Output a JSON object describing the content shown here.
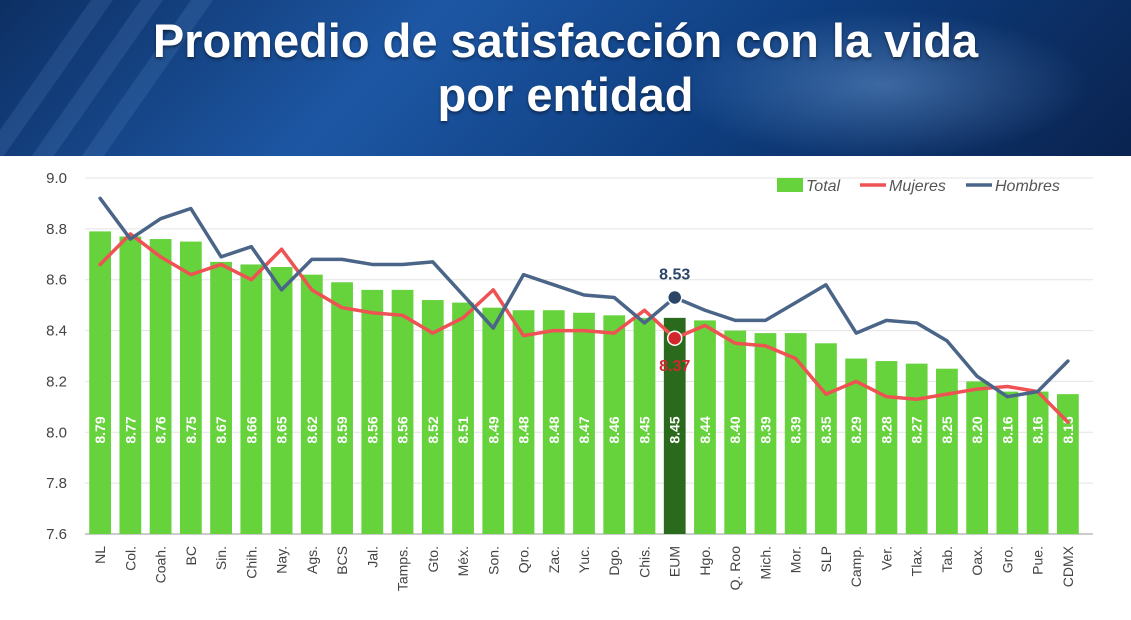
{
  "title": {
    "line1": "Promedio de satisfacción con la vida",
    "line2": "por entidad"
  },
  "chart_data": {
    "type": "bar",
    "title": "Promedio de satisfacción con la vida por entidad",
    "xlabel": "",
    "ylabel": "",
    "ylim": [
      7.6,
      9.0
    ],
    "yticks": [
      "7.6",
      "7.8",
      "8.0",
      "8.2",
      "8.4",
      "8.6",
      "8.8",
      "9.0"
    ],
    "grid": true,
    "legend_position": "top-right",
    "categories": [
      "NL",
      "Col.",
      "Coah.",
      "BC",
      "Sin.",
      "Chih.",
      "Nay.",
      "Ags.",
      "BCS",
      "Jal.",
      "Tamps.",
      "Gto.",
      "Méx.",
      "Son.",
      "Qro.",
      "Zac.",
      "Yuc.",
      "Dgo.",
      "Chis.",
      "EUM",
      "Hgo.",
      "Q. Roo",
      "Mich.",
      "Mor.",
      "SLP",
      "Camp.",
      "Ver.",
      "Tlax.",
      "Tab.",
      "Oax.",
      "Gro.",
      "Pue.",
      "CDMX"
    ],
    "value_labels": [
      "8.79",
      "8.77",
      "8.76",
      "8.75",
      "8.67",
      "8.66",
      "8.65",
      "8.62",
      "8.59",
      "8.56",
      "8.56",
      "8.52",
      "8.51",
      "8.49",
      "8.48",
      "8.48",
      "8.47",
      "8.46",
      "8.45",
      "8.45",
      "8.44",
      "8.40",
      "8.39",
      "8.39",
      "8.35",
      "8.29",
      "8.28",
      "8.27",
      "8.25",
      "8.20",
      "8.16",
      "8.16",
      "8.15"
    ],
    "highlight_category": "EUM",
    "series": [
      {
        "name": "Total",
        "kind": "bar",
        "color": "#66d23c",
        "highlight_color": "#2a6a1c",
        "values": [
          8.79,
          8.77,
          8.76,
          8.75,
          8.67,
          8.66,
          8.65,
          8.62,
          8.59,
          8.56,
          8.56,
          8.52,
          8.51,
          8.49,
          8.48,
          8.48,
          8.47,
          8.46,
          8.45,
          8.45,
          8.44,
          8.4,
          8.39,
          8.39,
          8.35,
          8.29,
          8.28,
          8.27,
          8.25,
          8.2,
          8.16,
          8.16,
          8.15
        ]
      },
      {
        "name": "Mujeres",
        "kind": "line",
        "color": "#ee5253",
        "values": [
          8.66,
          8.78,
          8.69,
          8.62,
          8.66,
          8.6,
          8.72,
          8.56,
          8.49,
          8.47,
          8.46,
          8.39,
          8.45,
          8.56,
          8.38,
          8.4,
          8.4,
          8.39,
          8.48,
          8.37,
          8.42,
          8.35,
          8.34,
          8.29,
          8.15,
          8.2,
          8.14,
          8.13,
          8.15,
          8.17,
          8.18,
          8.16,
          8.04
        ]
      },
      {
        "name": "Hombres",
        "kind": "line",
        "color": "#4a6587",
        "values": [
          8.92,
          8.76,
          8.84,
          8.88,
          8.69,
          8.73,
          8.56,
          8.68,
          8.68,
          8.66,
          8.66,
          8.67,
          8.54,
          8.41,
          8.62,
          8.58,
          8.54,
          8.53,
          8.43,
          8.53,
          8.48,
          8.44,
          8.44,
          8.51,
          8.58,
          8.39,
          8.44,
          8.43,
          8.36,
          8.22,
          8.14,
          8.16,
          8.28
        ]
      }
    ],
    "annotations": [
      {
        "category": "EUM",
        "series": "Hombres",
        "text": "8.53",
        "color": "#2b4667"
      },
      {
        "category": "EUM",
        "series": "Mujeres",
        "text": "8.37",
        "color": "#d0282b"
      }
    ]
  }
}
